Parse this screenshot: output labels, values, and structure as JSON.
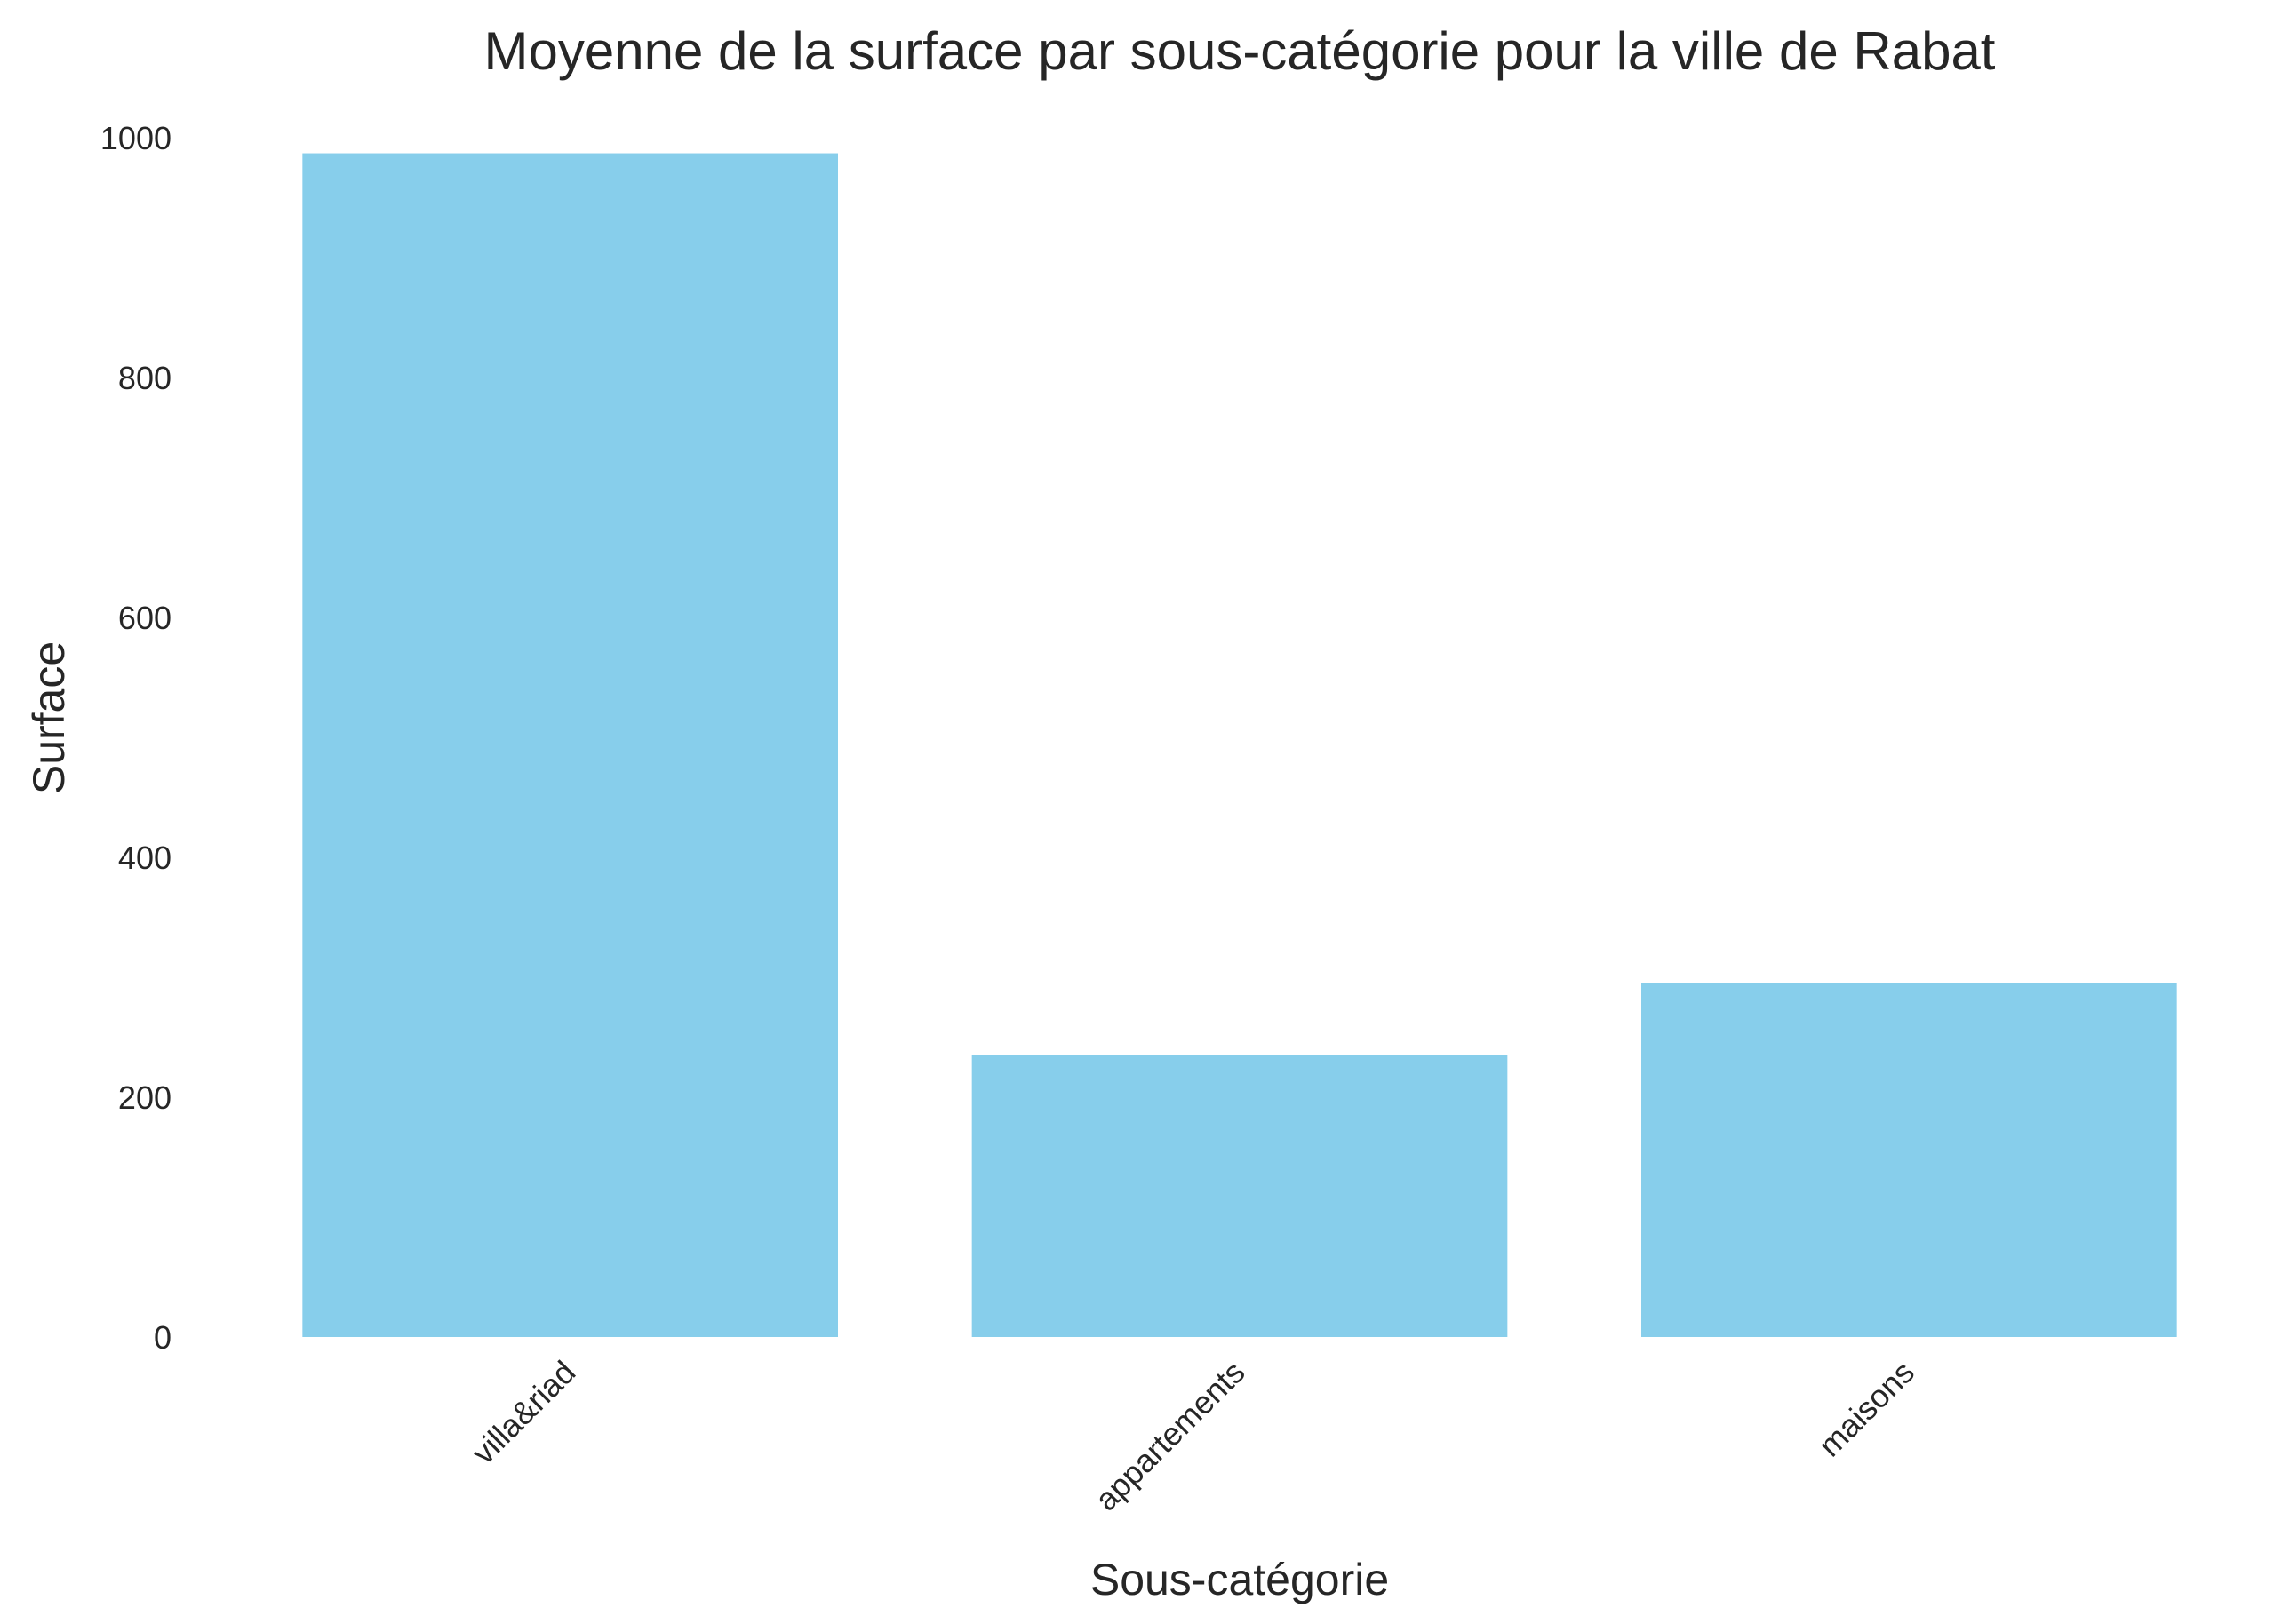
{
  "chart_data": {
    "type": "bar",
    "title": "Moyenne de la surface par sous-catégorie pour la ville de Rabat",
    "xlabel": "Sous-catégorie",
    "ylabel": "Surface",
    "categories": [
      "villa&riad",
      "appartements",
      "maisons"
    ],
    "values": [
      987,
      235,
      295
    ],
    "ylim": [
      0,
      1000
    ],
    "yticks": [
      0,
      200,
      400,
      600,
      800,
      1000
    ],
    "grid": false,
    "bar_color": "#87ceeb",
    "text_color": "#262626"
  }
}
